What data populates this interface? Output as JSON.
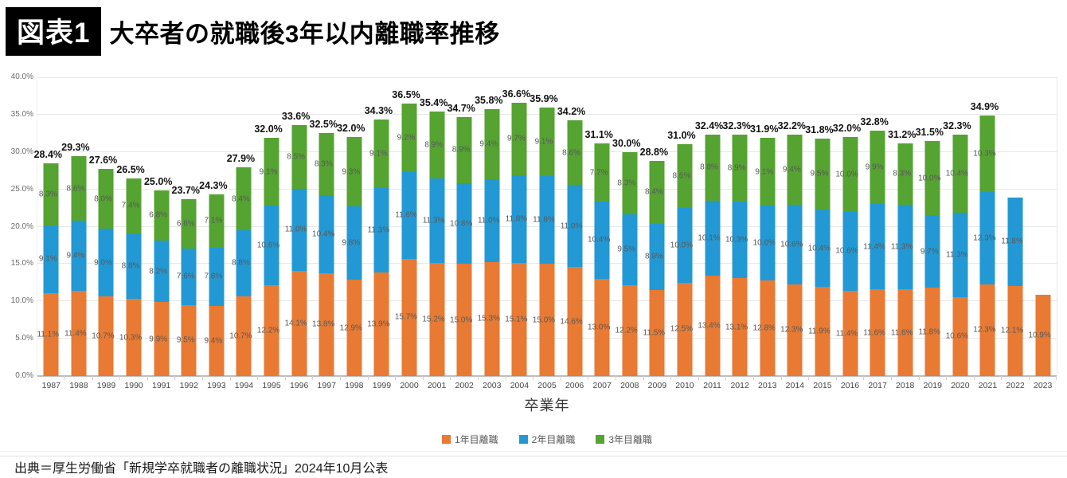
{
  "header": {
    "tag": "図表1",
    "title": "大卒者の就職後3年以内離職率推移"
  },
  "source": "出典＝厚生労働省「新規学卒就職者の離職状況」2024年10月公表",
  "chart_data": {
    "type": "bar",
    "stacked": true,
    "title": "大卒者の就職後3年以内離職率推移",
    "xlabel": "卒業年",
    "ylabel": "",
    "ylim": [
      0,
      40
    ],
    "ytick_step": 5,
    "grid": true,
    "legend_position": "bottom",
    "categories": [
      "1987",
      "1988",
      "1989",
      "1990",
      "1991",
      "1992",
      "1993",
      "1994",
      "1995",
      "1996",
      "1997",
      "1998",
      "1999",
      "2000",
      "2001",
      "2002",
      "2003",
      "2004",
      "2005",
      "2006",
      "2007",
      "2008",
      "2009",
      "2010",
      "2011",
      "2012",
      "2013",
      "2014",
      "2015",
      "2016",
      "2017",
      "2018",
      "2019",
      "2020",
      "2021",
      "2022",
      "2023"
    ],
    "series": [
      {
        "name": "1年目離職",
        "color": "#E87A33",
        "values": [
          11.1,
          11.4,
          10.7,
          10.3,
          9.9,
          9.5,
          9.4,
          10.7,
          12.2,
          14.1,
          13.8,
          12.9,
          13.9,
          15.7,
          15.2,
          15.0,
          15.3,
          15.1,
          15.0,
          14.6,
          13.0,
          12.2,
          11.5,
          12.5,
          13.4,
          13.1,
          12.8,
          12.3,
          11.9,
          11.4,
          11.6,
          11.6,
          11.8,
          10.6,
          12.3,
          12.1,
          10.9
        ]
      },
      {
        "name": "2年目離職",
        "color": "#2299D4",
        "values": [
          9.1,
          9.4,
          9.0,
          8.8,
          8.2,
          7.6,
          7.8,
          8.8,
          10.6,
          11.0,
          10.4,
          9.8,
          11.3,
          11.6,
          11.3,
          10.8,
          11.0,
          11.8,
          11.8,
          11.0,
          10.4,
          9.5,
          8.9,
          10.0,
          10.1,
          10.3,
          10.0,
          10.6,
          10.4,
          10.6,
          11.4,
          11.3,
          9.7,
          11.3,
          12.3,
          11.8,
          null
        ]
      },
      {
        "name": "3年目離職",
        "color": "#55A331",
        "values": [
          8.3,
          8.6,
          8.0,
          7.4,
          6.8,
          6.6,
          7.1,
          8.4,
          9.1,
          8.5,
          8.3,
          9.3,
          9.1,
          9.2,
          8.9,
          8.9,
          9.4,
          9.7,
          9.1,
          8.6,
          7.7,
          8.3,
          8.4,
          8.5,
          8.8,
          8.9,
          9.1,
          9.4,
          9.5,
          10.0,
          9.9,
          8.3,
          10.0,
          10.4,
          10.3,
          null,
          null
        ]
      }
    ],
    "totals": [
      28.4,
      29.3,
      27.6,
      26.5,
      25.0,
      23.7,
      24.3,
      27.9,
      32.0,
      33.6,
      32.5,
      32.0,
      34.3,
      36.5,
      35.4,
      34.7,
      35.8,
      36.6,
      35.9,
      34.2,
      31.1,
      30.0,
      28.8,
      31.0,
      32.4,
      32.3,
      31.9,
      32.2,
      31.8,
      32.0,
      32.8,
      31.2,
      31.5,
      32.3,
      34.9,
      null,
      null
    ]
  }
}
